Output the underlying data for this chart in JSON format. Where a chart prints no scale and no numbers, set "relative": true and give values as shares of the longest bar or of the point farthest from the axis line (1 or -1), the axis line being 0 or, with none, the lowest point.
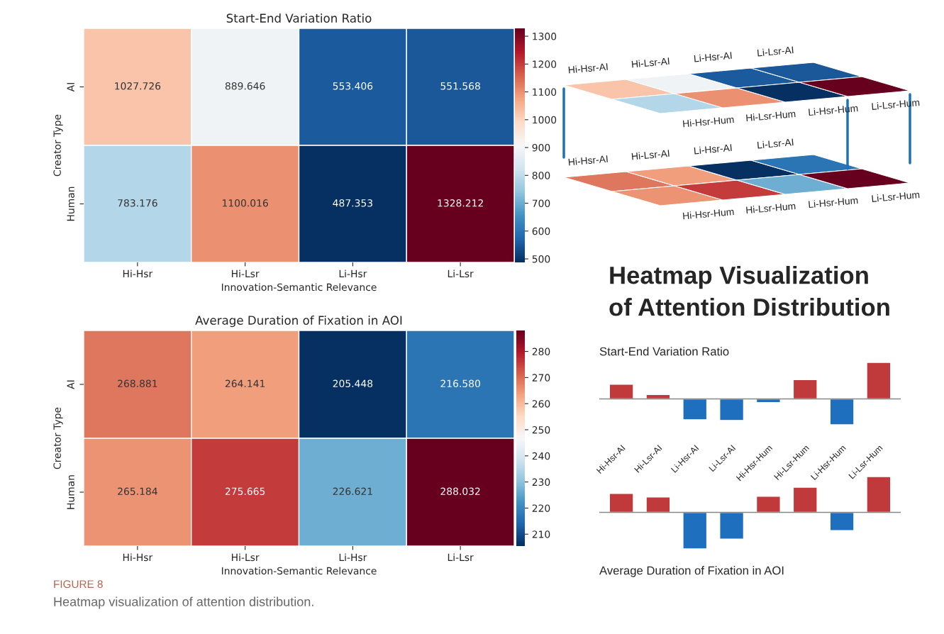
{
  "chart_data": [
    {
      "type": "heatmap",
      "title": "Start-End Variation Ratio",
      "xlabel": "Innovation-Semantic Relevance",
      "ylabel": "Creator Type",
      "categories": [
        "Hi-Hsr",
        "Hi-Lsr",
        "Li-Hsr",
        "Li-Lsr"
      ],
      "y_categories": [
        "AI",
        "Human"
      ],
      "cells": [
        [
          1027.726,
          889.646,
          553.406,
          551.568
        ],
        [
          783.176,
          1100.016,
          487.353,
          1328.212
        ]
      ],
      "cell_labels": [
        [
          "1027.726",
          "889.646",
          "553.406",
          "551.568"
        ],
        [
          "783.176",
          "1100.016",
          "487.353",
          "1328.212"
        ]
      ],
      "clim": [
        487.353,
        1328.212
      ],
      "cticks": [
        500,
        600,
        700,
        800,
        900,
        1000,
        1100,
        1200,
        1300
      ]
    },
    {
      "type": "other",
      "title": "Heatmap Visualization\nof Attention Distribution",
      "categories": [
        "Hi-Hsr-AI",
        "Hi-Lsr-AI",
        "Li-Hsr-AI",
        "Li-Lsr-AI",
        "Hi-Hsr-Hum",
        "Hi-Lsr-Hum",
        "Li-Hsr-Hum",
        "Li-Lsr-Hum"
      ]
    },
    {
      "type": "bar",
      "title": "Start-End Variation Ratio",
      "relative": true,
      "tick_labels": "x",
      "categories": [
        "Hi-Hsr-AI",
        "Hi-Lsr-AI",
        "Li-Hsr-AI",
        "Li-Lsr-AI",
        "Hi-Hsr-Hum",
        "Hi-Lsr-Hum",
        "Li-Hsr-Hum",
        "Li-Lsr-Hum"
      ],
      "values": [
        0.4,
        0.12,
        -0.57,
        -0.59,
        -0.1,
        0.53,
        -0.71,
        1
      ],
      "colors": [
        "#c0393b",
        "#c0393b",
        "#1f6fbf",
        "#1f6fbf",
        "#1f6fbf",
        "#c0393b",
        "#1f6fbf",
        "#c0393b"
      ]
    },
    {
      "type": "bar",
      "title": "Average Duration of Fixation in AOI",
      "relative": true,
      "tick_labels": false,
      "categories": [
        null,
        null,
        null,
        null,
        null,
        null,
        null,
        null
      ],
      "values": [
        0.52,
        0.42,
        -1,
        -0.73,
        0.44,
        0.69,
        -0.5,
        0.98
      ],
      "colors": [
        "#c0393b",
        "#c0393b",
        "#1f6fbf",
        "#1f6fbf",
        "#c0393b",
        "#c0393b",
        "#1f6fbf",
        "#c0393b"
      ],
      "annotations": [
        "FIGURE 8",
        "Heatmap visualization of attention distribution."
      ]
    },
    {
      "type": "heatmap",
      "title": "Average Duration of Fixation in AOI",
      "xlabel": "Innovation-Semantic Relevance",
      "ylabel": "Creator Type",
      "categories": [
        "Hi-Hsr",
        "Hi-Lsr",
        "Li-Hsr",
        "Li-Lsr"
      ],
      "y_categories": [
        "AI",
        "Human"
      ],
      "cells": [
        [
          268.881,
          264.141,
          205.448,
          216.58
        ],
        [
          265.184,
          275.665,
          226.621,
          288.032
        ]
      ],
      "cell_labels": [
        [
          "268.881",
          "264.141",
          "205.448",
          "216.580"
        ],
        [
          "265.184",
          "275.665",
          "226.621",
          "288.032"
        ]
      ],
      "clim": [
        205.448,
        288.032
      ],
      "cticks": [
        210,
        220,
        230,
        240,
        250,
        260,
        270,
        280
      ]
    }
  ]
}
